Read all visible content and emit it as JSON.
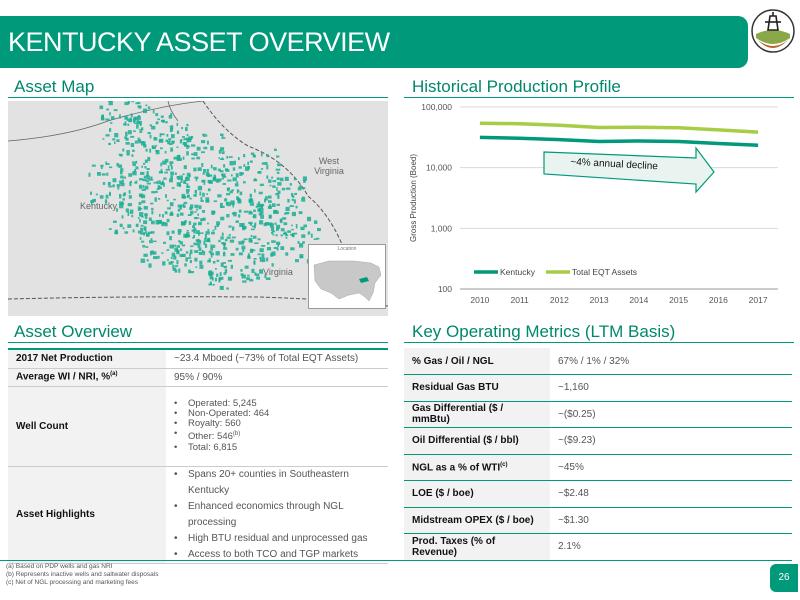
{
  "title": "KENTUCKY ASSET OVERVIEW",
  "sections": {
    "asset_map": "Asset Map",
    "production": "Historical Production Profile",
    "overview": "Asset Overview",
    "metrics": "Key Operating Metrics (LTM Basis)"
  },
  "map": {
    "labels": {
      "kentucky": "Kentucky",
      "west_virginia": "West Virginia",
      "virginia": "Virginia",
      "inset": "Location"
    },
    "colors": {
      "background": "#e2e2e2",
      "asset": "#1aae93"
    }
  },
  "chart_data": {
    "type": "line",
    "x": [
      "2010",
      "2011",
      "2012",
      "2013",
      "2014",
      "2015",
      "2016",
      "2017"
    ],
    "series": [
      {
        "name": "Kentucky",
        "color": "#00997a",
        "values": [
          31500,
          30500,
          29000,
          27000,
          27500,
          27000,
          25000,
          23500
        ]
      },
      {
        "name": "Total EQT Assets",
        "color": "#a7cd46",
        "values": [
          54000,
          53000,
          50000,
          46000,
          46500,
          45500,
          42000,
          38500
        ]
      }
    ],
    "y_ticks": [
      "100",
      "1,000",
      "10,000",
      "100,000"
    ],
    "ylabel": "Gross Production (Boed)",
    "ylim": [
      100,
      100000
    ],
    "yscale": "log",
    "annotation": "~4% annual decline",
    "legend": "bottom-left"
  },
  "overview": {
    "net_production": {
      "label": "2017 Net Production",
      "value": "~23.4 Mboed (~73% of Total EQT Assets)"
    },
    "wi_nri": {
      "label": "Average WI / NRI, %",
      "sup": "(a)",
      "value": "95% / 90%"
    },
    "well_count": {
      "label": "Well Count",
      "items": [
        {
          "text": "Operated: 5,245",
          "sup": ""
        },
        {
          "text": "Non-Operated: 464",
          "sup": ""
        },
        {
          "text": "Royalty: 560",
          "sup": ""
        },
        {
          "text": "Other: 546",
          "sup": "(b)"
        },
        {
          "text": "Total: 6,815",
          "sup": ""
        }
      ]
    },
    "highlights": {
      "label": "Asset Highlights",
      "items": [
        "Spans 20+ counties in Southeastern Kentucky",
        "Enhanced economics through NGL processing",
        "High BTU residual and unprocessed gas",
        "Access to both TCO and TGP markets"
      ]
    }
  },
  "metrics": [
    {
      "label": "% Gas / Oil / NGL",
      "sup": "",
      "value": "67% / 1% / 32%"
    },
    {
      "label": "Residual Gas BTU",
      "sup": "",
      "value": "~1,160"
    },
    {
      "label": "Gas Differential ($ / mmBtu)",
      "sup": "",
      "value": "~($0.25)"
    },
    {
      "label": "Oil Differential ($ / bbl)",
      "sup": "",
      "value": "~($9.23)"
    },
    {
      "label": "NGL as a % of WTI",
      "sup": "(c)",
      "value": "~45%"
    },
    {
      "label": "LOE ($ / boe)",
      "sup": "",
      "value": "~$2.48"
    },
    {
      "label": "Midstream OPEX ($ / boe)",
      "sup": "",
      "value": "~$1.30"
    },
    {
      "label": "Prod. Taxes (% of Revenue)",
      "sup": "",
      "value": "2.1%"
    }
  ],
  "footnotes": [
    "(a) Based on PDP wells and gas NRI",
    "(b) Represents inactive wells and saltwater disposals",
    "(c) Net of NGL processing and marketing fees"
  ],
  "page_number": "26",
  "accent": "#00997a"
}
